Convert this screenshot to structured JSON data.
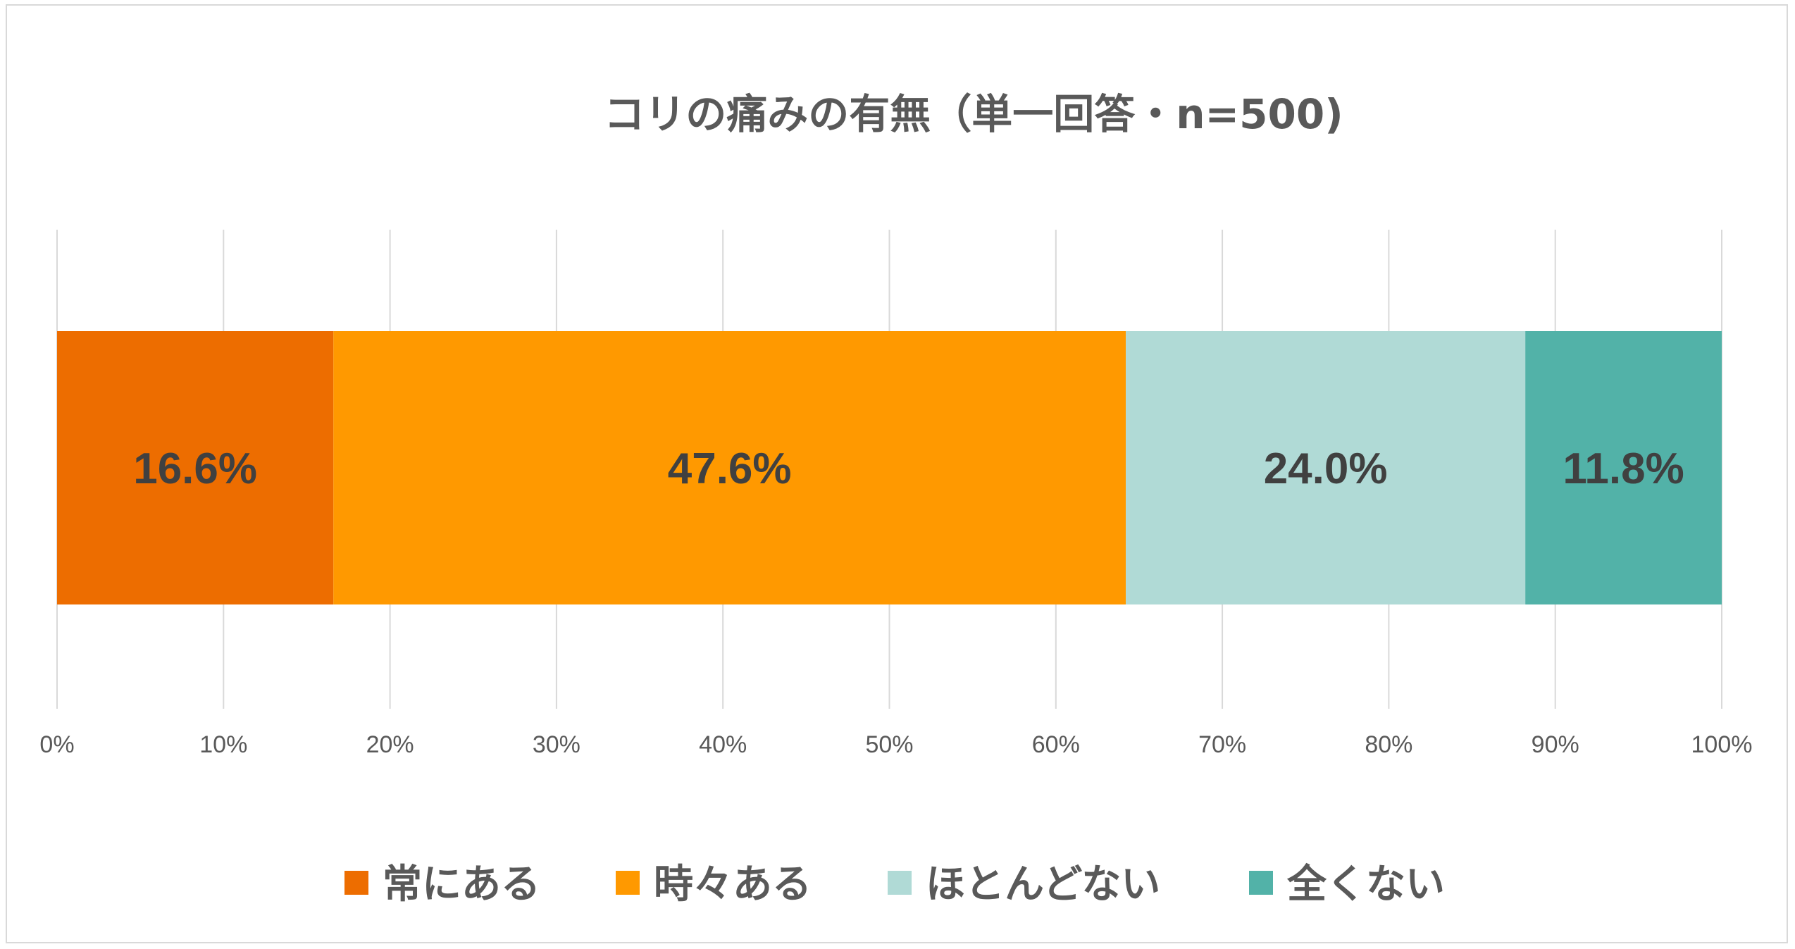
{
  "chart_data": {
    "type": "bar",
    "orientation": "horizontal",
    "stacked": true,
    "percent_stacked": true,
    "title": "コリの痛みの有無（単一回答・n=500)",
    "xlim": [
      0,
      100
    ],
    "x_ticks": [
      "0%",
      "10%",
      "20%",
      "30%",
      "40%",
      "50%",
      "60%",
      "70%",
      "80%",
      "90%",
      "100%"
    ],
    "grid": "vertical",
    "legend_position": "bottom",
    "series": [
      {
        "name": "常にある",
        "value": 16.6,
        "label": "16.6%",
        "color": "#ED6D00"
      },
      {
        "name": "時々ある",
        "value": 47.6,
        "label": "47.6%",
        "color": "#FF9900"
      },
      {
        "name": "ほとんどない",
        "value": 24.0,
        "label": "24.0%",
        "color": "#B0DAD6"
      },
      {
        "name": "全くない",
        "value": 11.8,
        "label": "11.8%",
        "color": "#52B2A8"
      }
    ]
  }
}
